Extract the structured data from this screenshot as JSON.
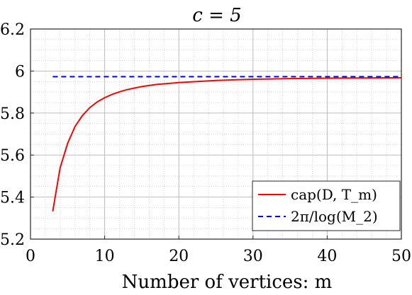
{
  "chart_data": {
    "type": "line",
    "title": "c = 5",
    "xlabel": "Number of vertices: m",
    "ylabel": "",
    "xlim": [
      0,
      50
    ],
    "ylim": [
      5.2,
      6.2
    ],
    "xticks": [
      0,
      10,
      20,
      30,
      40,
      50
    ],
    "yticks": [
      5.2,
      5.4,
      5.6,
      5.8,
      6,
      6.2
    ],
    "xtick_labels": [
      "0",
      "10",
      "20",
      "30",
      "40",
      "50"
    ],
    "ytick_labels": [
      "5.2",
      "5.4",
      "5.6",
      "5.8",
      "6",
      "6.2"
    ],
    "grid": "major and minor",
    "legend_position": "bottom-right",
    "series": [
      {
        "name": "cap(D, T_m)",
        "color": "#ff0000",
        "style": "solid",
        "x": [
          3,
          4,
          5,
          6,
          7,
          8,
          9,
          10,
          11,
          12,
          13,
          14,
          15,
          17,
          20,
          25,
          30,
          35,
          40,
          45,
          50
        ],
        "y": [
          5.332,
          5.539,
          5.655,
          5.736,
          5.788,
          5.826,
          5.853,
          5.873,
          5.889,
          5.901,
          5.911,
          5.919,
          5.926,
          5.936,
          5.945,
          5.955,
          5.961,
          5.964,
          5.966,
          5.967,
          5.968
        ]
      },
      {
        "name": "2π/log(M_2)",
        "color": "#0000ff",
        "style": "dashed",
        "x": [
          3,
          50
        ],
        "y": [
          5.973,
          5.973
        ]
      }
    ]
  }
}
